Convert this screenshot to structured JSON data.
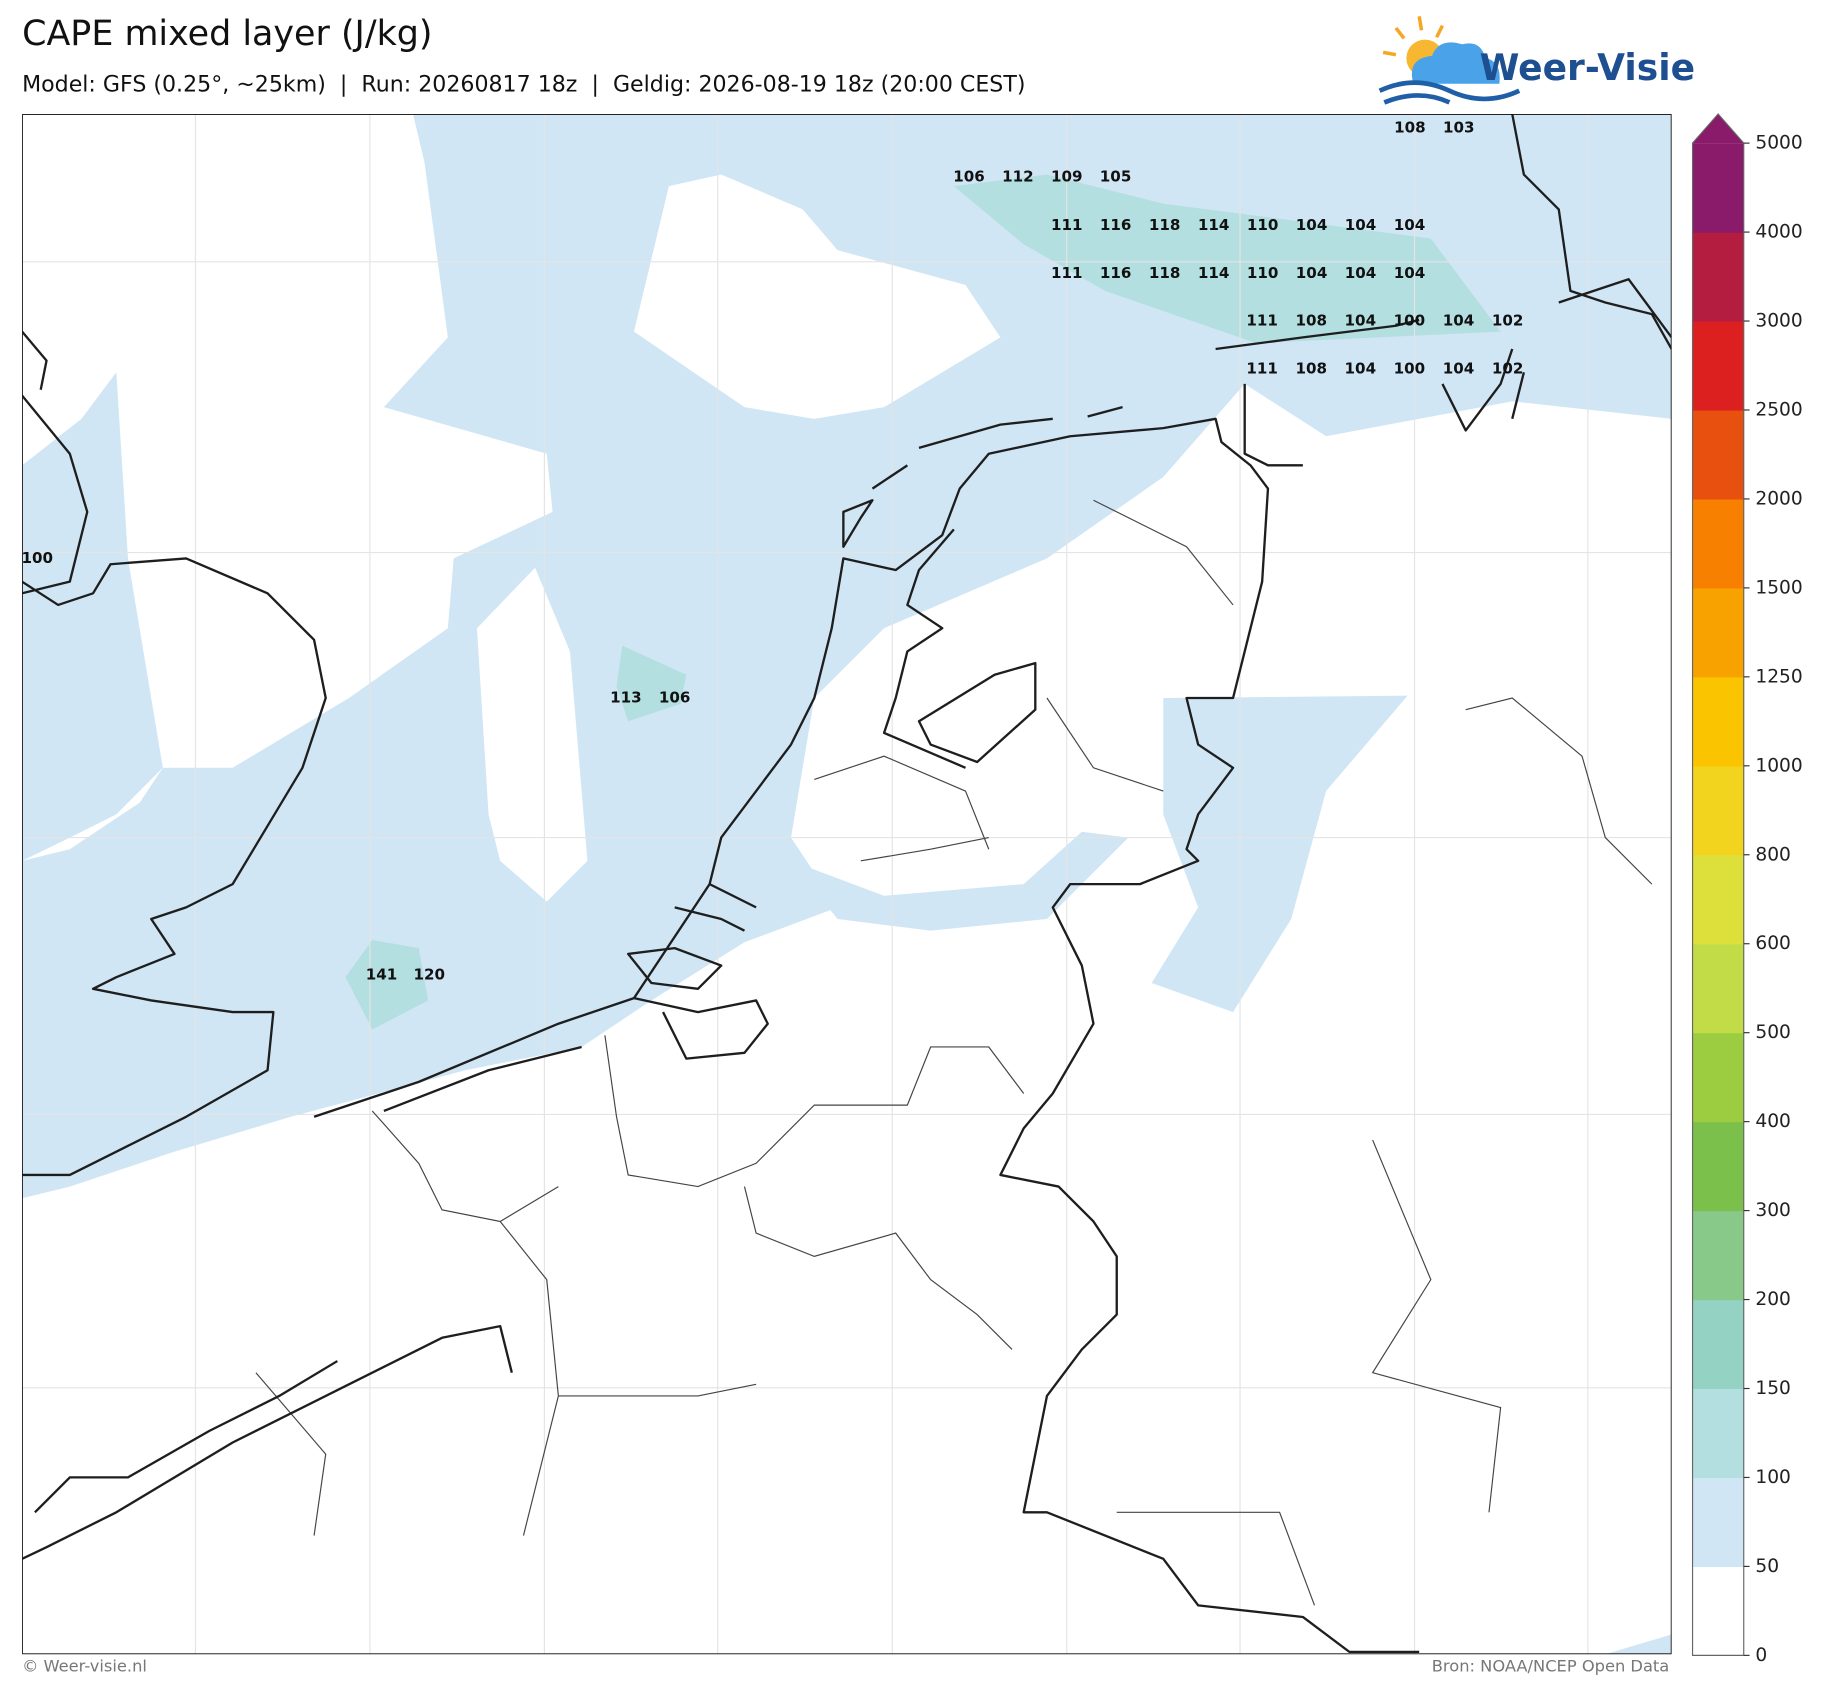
{
  "header": {
    "title": "CAPE mixed layer (J/kg)",
    "subtitle": "Model: GFS (0.25°, ~25km)  |  Run: 20260817 18z  |  Geldig: 2026-08-19 18z (20:00 CEST)"
  },
  "logo": {
    "text": "Weer-Visie"
  },
  "colorbar": {
    "ticks": [
      0,
      50,
      100,
      150,
      200,
      300,
      400,
      500,
      600,
      800,
      1000,
      1250,
      1500,
      2000,
      2500,
      3000,
      4000,
      5000
    ],
    "colors": [
      "#ffffff",
      "#d0e6f5",
      "#b4dfe0",
      "#94d2c4",
      "#88c888",
      "#7cc04c",
      "#9ccc40",
      "#c2dc48",
      "#dde03a",
      "#f2d41e",
      "#fac400",
      "#f8a200",
      "#f88000",
      "#e85010",
      "#dc2020",
      "#b41c40",
      "#8a1a6a"
    ]
  },
  "map_labels": {
    "rows": [
      [
        108,
        103
      ],
      [
        106,
        112,
        109,
        105
      ],
      [
        111,
        116,
        118,
        114,
        110,
        104,
        104,
        104
      ],
      [
        111,
        116,
        118,
        114,
        110,
        104,
        104,
        104
      ],
      [
        111,
        108,
        104,
        100,
        104,
        102
      ],
      [
        111,
        108,
        104,
        100,
        104,
        102
      ],
      [
        100
      ],
      [
        113,
        106
      ],
      [
        141,
        120
      ]
    ]
  },
  "footer": {
    "left": "© Weer-visie.nl",
    "right": "Bron: NOAA/NCEP Open Data"
  }
}
